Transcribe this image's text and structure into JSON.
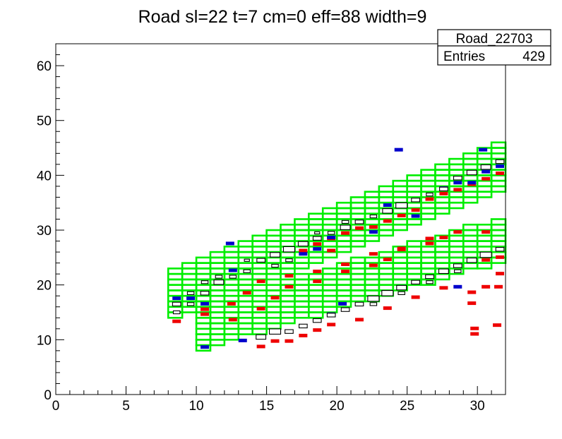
{
  "chart_data": {
    "type": "heatmap",
    "title": "Road sl=22 t=7 cm=0 eff=88 width=9",
    "xlabel": "",
    "ylabel": "",
    "xlim": [
      0,
      32
    ],
    "ylim": [
      0,
      64
    ],
    "x_ticks": [
      0,
      5,
      10,
      15,
      20,
      25,
      30
    ],
    "y_ticks": [
      0,
      10,
      20,
      30,
      40,
      50,
      60
    ],
    "grid": false,
    "stats_box": {
      "name": "Road_22703",
      "entries_label": "Entries",
      "entries_value": "429",
      "placement": "top-right"
    },
    "colors": {
      "road": "#00ee00",
      "hit_red": "#ee0000",
      "hit_blue": "#0000cc",
      "hit_outline": "#000000",
      "frame": "#000000"
    },
    "road_lower": {
      "x_start": [
        8,
        14.5
      ],
      "x_end": [
        8,
        10.5
      ],
      "slope": 0.75,
      "width": 8,
      "height": 1.5
    },
    "road_upper": {
      "x_start": [
        8,
        19.5
      ],
      "x_end": [
        8,
        13.5
      ],
      "slope": 1.0,
      "width": 9,
      "height": 1.5
    },
    "red_hits": [
      [
        8.6,
        13.3
      ],
      [
        10.6,
        15.5
      ],
      [
        12.5,
        16.5
      ],
      [
        13.6,
        18.5
      ],
      [
        14.6,
        15.6
      ],
      [
        15.6,
        17.6
      ],
      [
        16.6,
        19.6
      ],
      [
        18.6,
        20.6
      ],
      [
        20.6,
        22.4
      ],
      [
        22.6,
        23.5
      ],
      [
        23.6,
        24.6
      ],
      [
        24.6,
        26.4
      ],
      [
        26.6,
        27.5
      ],
      [
        27.6,
        28.6
      ],
      [
        29.6,
        18.6
      ],
      [
        30.6,
        19.6
      ],
      [
        31.5,
        19.6
      ],
      [
        29.8,
        11
      ],
      [
        29.8,
        12
      ],
      [
        31.4,
        12.6
      ],
      [
        14.6,
        8.7
      ],
      [
        15.6,
        9.7
      ],
      [
        16.6,
        9.7
      ],
      [
        17.6,
        10.7
      ],
      [
        18.6,
        11.7
      ],
      [
        19.6,
        12.7
      ],
      [
        21.6,
        13.6
      ],
      [
        23.6,
        15.7
      ],
      [
        25.6,
        17.7
      ],
      [
        27.6,
        19.4
      ],
      [
        29.6,
        16.6
      ],
      [
        31.6,
        22
      ],
      [
        30.6,
        24.5
      ],
      [
        31.6,
        25
      ],
      [
        18.6,
        27.4
      ],
      [
        19.6,
        28.4
      ],
      [
        20.6,
        29.4
      ],
      [
        21.6,
        30.3
      ],
      [
        22.6,
        30.5
      ],
      [
        23.6,
        31.6
      ],
      [
        24.6,
        32.6
      ],
      [
        25.6,
        33.6
      ],
      [
        26.6,
        35.6
      ],
      [
        27.6,
        36.6
      ],
      [
        28.6,
        37.3
      ],
      [
        29.6,
        38.3
      ],
      [
        30.6,
        39.3
      ],
      [
        31.6,
        40.3
      ],
      [
        14.6,
        20.6
      ],
      [
        16.6,
        21.6
      ],
      [
        18.6,
        22.4
      ],
      [
        20.6,
        23.7
      ],
      [
        22.6,
        25.6
      ],
      [
        24.6,
        26.6
      ],
      [
        26.6,
        28.4
      ],
      [
        28.6,
        29.6
      ],
      [
        30.6,
        29.6
      ],
      [
        12.6,
        13.6
      ],
      [
        10.6,
        14.6
      ],
      [
        17.6,
        26.2
      ],
      [
        19.6,
        26.2
      ]
    ],
    "blue_hits": [
      [
        8.6,
        17.5
      ],
      [
        9.6,
        17.5
      ],
      [
        10.6,
        16.5
      ],
      [
        12.4,
        27.5
      ],
      [
        13.3,
        9.8
      ],
      [
        14.6,
        24.5
      ],
      [
        15.6,
        25.5
      ],
      [
        18.6,
        26.5
      ],
      [
        19.6,
        28.6
      ],
      [
        20.4,
        16.5
      ],
      [
        22.6,
        29.6
      ],
      [
        23.6,
        34.5
      ],
      [
        24.4,
        44.6
      ],
      [
        25.6,
        32.5
      ],
      [
        27.6,
        37.6
      ],
      [
        28.6,
        38.6
      ],
      [
        29.6,
        38.6
      ],
      [
        30.4,
        44.6
      ],
      [
        31.6,
        41.6
      ],
      [
        19.6,
        14.6
      ],
      [
        10.6,
        8.6
      ],
      [
        24.6,
        19.6
      ],
      [
        28.6,
        19.6
      ],
      [
        30.6,
        40.6
      ],
      [
        12.6,
        22.6
      ],
      [
        17.6,
        25.6
      ]
    ],
    "open_boxes": [
      [
        8.6,
        16.5,
        3
      ],
      [
        8.6,
        15,
        2
      ],
      [
        9.6,
        16.5,
        2
      ],
      [
        9.6,
        18.5,
        2
      ],
      [
        10.6,
        18.5,
        3
      ],
      [
        10.6,
        20.5,
        2
      ],
      [
        11.6,
        20.5,
        4
      ],
      [
        11.6,
        21.5,
        2
      ],
      [
        12.6,
        21.5,
        2
      ],
      [
        13.6,
        22.5,
        2
      ],
      [
        13.6,
        24.5,
        1
      ],
      [
        14.6,
        24.5,
        3
      ],
      [
        15.6,
        25.5,
        4
      ],
      [
        15.6,
        23.5,
        2
      ],
      [
        16.6,
        26.5,
        5
      ],
      [
        16.6,
        24.5,
        2
      ],
      [
        17.6,
        27.5,
        4
      ],
      [
        18.6,
        28.5,
        3
      ],
      [
        18.6,
        29.5,
        1
      ],
      [
        19.6,
        29.5,
        2
      ],
      [
        20.6,
        30.5,
        4
      ],
      [
        20.6,
        31.5,
        2
      ],
      [
        21.6,
        31.5,
        3
      ],
      [
        22.6,
        32.5,
        2
      ],
      [
        23.6,
        33.5,
        4
      ],
      [
        24.6,
        34.5,
        5
      ],
      [
        25.6,
        35.5,
        3
      ],
      [
        26.6,
        36.5,
        2
      ],
      [
        27.6,
        37.5,
        3
      ],
      [
        28.6,
        39.5,
        3
      ],
      [
        29.6,
        40.5,
        4
      ],
      [
        30.6,
        41.5,
        4
      ],
      [
        31.6,
        42.5,
        3
      ],
      [
        14.6,
        10.5,
        4
      ],
      [
        15.6,
        11.5,
        5
      ],
      [
        16.6,
        11.5,
        3
      ],
      [
        17.6,
        12.5,
        3
      ],
      [
        18.6,
        13.5,
        3
      ],
      [
        19.6,
        14.5,
        3
      ],
      [
        20.6,
        15.5,
        3
      ],
      [
        21.6,
        16.5,
        3
      ],
      [
        22.6,
        17.5,
        5
      ],
      [
        23.6,
        18.5,
        5
      ],
      [
        24.6,
        19.5,
        4
      ],
      [
        25.6,
        20.5,
        3
      ],
      [
        26.6,
        21.5,
        3
      ],
      [
        27.6,
        22.5,
        4
      ],
      [
        28.6,
        23.5,
        3
      ],
      [
        29.6,
        24.5,
        4
      ],
      [
        30.6,
        25.5,
        5
      ],
      [
        31.6,
        26.5,
        3
      ],
      [
        22.6,
        16.5,
        2
      ],
      [
        24.6,
        18.5,
        2
      ],
      [
        26.6,
        20.5,
        2
      ],
      [
        28.6,
        22.5,
        2
      ]
    ]
  }
}
